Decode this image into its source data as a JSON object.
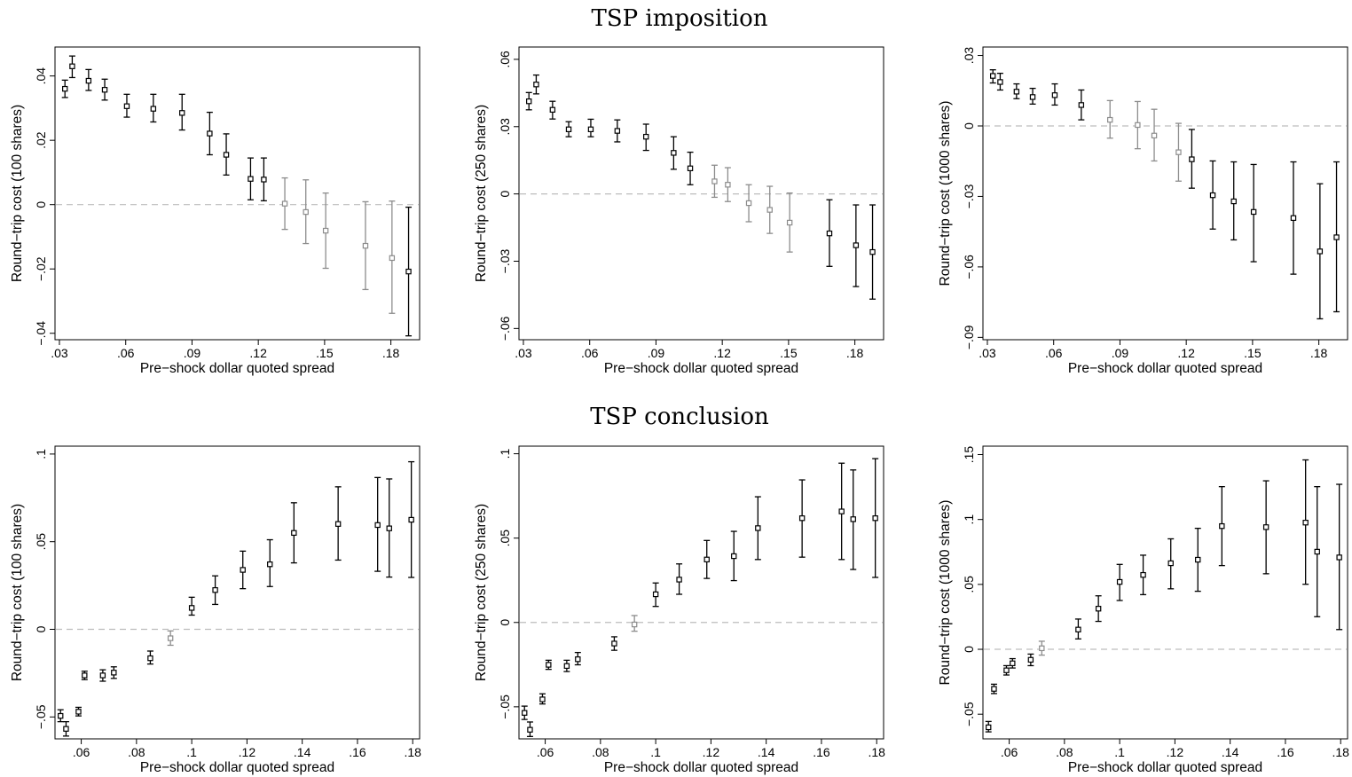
{
  "figure": {
    "row_titles": [
      "TSP imposition",
      "TSP conclusion"
    ]
  },
  "colors": {
    "significant": "#000000",
    "insignificant": "#8c8c8c",
    "zero_line": "#bdbdbd"
  },
  "chart_data": [
    {
      "type": "scatter",
      "panel": "TSP imposition",
      "xlabel": "Pre−shock dollar quoted spread",
      "ylabel": "Round−trip cost (100 shares)",
      "xlim": [
        0.028,
        0.193
      ],
      "ylim": [
        -0.042,
        0.049
      ],
      "xticks": [
        0.03,
        0.06,
        0.09,
        0.12,
        0.15,
        0.18
      ],
      "xtick_labels": [
        ".03",
        ".06",
        ".09",
        ".12",
        ".15",
        ".18"
      ],
      "yticks": [
        -0.04,
        -0.02,
        0,
        0.02,
        0.04
      ],
      "ytick_labels": [
        "−.04",
        "−.02",
        "0",
        ".02",
        ".04"
      ],
      "zero_line": true,
      "points": [
        {
          "x": 0.0325,
          "y": 0.036,
          "lo": 0.0333,
          "hi": 0.0387,
          "sig": true
        },
        {
          "x": 0.0358,
          "y": 0.043,
          "lo": 0.0395,
          "hi": 0.0462,
          "sig": true
        },
        {
          "x": 0.0432,
          "y": 0.0385,
          "lo": 0.0355,
          "hi": 0.042,
          "sig": true
        },
        {
          "x": 0.0505,
          "y": 0.0357,
          "lo": 0.0325,
          "hi": 0.039,
          "sig": true
        },
        {
          "x": 0.0605,
          "y": 0.0306,
          "lo": 0.0272,
          "hi": 0.0343,
          "sig": true
        },
        {
          "x": 0.0725,
          "y": 0.0298,
          "lo": 0.0257,
          "hi": 0.0343,
          "sig": true
        },
        {
          "x": 0.0855,
          "y": 0.0285,
          "lo": 0.0232,
          "hi": 0.0343,
          "sig": true
        },
        {
          "x": 0.098,
          "y": 0.0221,
          "lo": 0.0155,
          "hi": 0.0287,
          "sig": true
        },
        {
          "x": 0.1055,
          "y": 0.0155,
          "lo": 0.0092,
          "hi": 0.022,
          "sig": true
        },
        {
          "x": 0.1165,
          "y": 0.008,
          "lo": 0.0015,
          "hi": 0.0145,
          "sig": true
        },
        {
          "x": 0.1225,
          "y": 0.0078,
          "lo": 0.0012,
          "hi": 0.0145,
          "sig": true
        },
        {
          "x": 0.132,
          "y": 0.0003,
          "lo": -0.0077,
          "hi": 0.0083,
          "sig": false
        },
        {
          "x": 0.1415,
          "y": -0.0023,
          "lo": -0.0121,
          "hi": 0.0077,
          "sig": false
        },
        {
          "x": 0.1505,
          "y": -0.0081,
          "lo": -0.0198,
          "hi": 0.0036,
          "sig": false
        },
        {
          "x": 0.1685,
          "y": -0.0128,
          "lo": -0.0264,
          "hi": 0.0009,
          "sig": false
        },
        {
          "x": 0.1805,
          "y": -0.0166,
          "lo": -0.0338,
          "hi": 0.0011,
          "sig": false
        },
        {
          "x": 0.188,
          "y": -0.0208,
          "lo": -0.0408,
          "hi": -0.0008,
          "sig": true
        }
      ]
    },
    {
      "type": "scatter",
      "panel": "TSP imposition",
      "xlabel": "Pre−shock dollar quoted spread",
      "ylabel": "Round−trip cost (250 shares)",
      "xlim": [
        0.028,
        0.193
      ],
      "ylim": [
        -0.065,
        0.0655
      ],
      "xticks": [
        0.03,
        0.06,
        0.09,
        0.12,
        0.15,
        0.18
      ],
      "xtick_labels": [
        ".03",
        ".06",
        ".09",
        ".12",
        ".15",
        ".18"
      ],
      "yticks": [
        -0.06,
        -0.03,
        0,
        0.03,
        0.06
      ],
      "ytick_labels": [
        "−.06",
        "−.03",
        "0",
        ".03",
        ".06"
      ],
      "zero_line": true,
      "points": [
        {
          "x": 0.0325,
          "y": 0.0413,
          "lo": 0.0375,
          "hi": 0.0452,
          "sig": true
        },
        {
          "x": 0.0358,
          "y": 0.0488,
          "lo": 0.0446,
          "hi": 0.053,
          "sig": true
        },
        {
          "x": 0.0432,
          "y": 0.0375,
          "lo": 0.0334,
          "hi": 0.0413,
          "sig": true
        },
        {
          "x": 0.0505,
          "y": 0.0288,
          "lo": 0.0255,
          "hi": 0.0322,
          "sig": true
        },
        {
          "x": 0.0605,
          "y": 0.0288,
          "lo": 0.0255,
          "hi": 0.0333,
          "sig": true
        },
        {
          "x": 0.0725,
          "y": 0.0281,
          "lo": 0.0232,
          "hi": 0.033,
          "sig": true
        },
        {
          "x": 0.0855,
          "y": 0.0255,
          "lo": 0.0194,
          "hi": 0.0311,
          "sig": true
        },
        {
          "x": 0.098,
          "y": 0.0183,
          "lo": 0.011,
          "hi": 0.0255,
          "sig": true
        },
        {
          "x": 0.1055,
          "y": 0.0114,
          "lo": 0.0041,
          "hi": 0.0186,
          "sig": true
        },
        {
          "x": 0.1165,
          "y": 0.0056,
          "lo": -0.0015,
          "hi": 0.0128,
          "sig": false
        },
        {
          "x": 0.1225,
          "y": 0.0041,
          "lo": -0.0034,
          "hi": 0.0117,
          "sig": false
        },
        {
          "x": 0.132,
          "y": -0.0041,
          "lo": -0.0124,
          "hi": 0.0041,
          "sig": false
        },
        {
          "x": 0.1415,
          "y": -0.0071,
          "lo": -0.0176,
          "hi": 0.0034,
          "sig": false
        },
        {
          "x": 0.1505,
          "y": -0.0128,
          "lo": -0.0259,
          "hi": 0.0004,
          "sig": false
        },
        {
          "x": 0.1685,
          "y": -0.0176,
          "lo": -0.0323,
          "hi": -0.0026,
          "sig": true
        },
        {
          "x": 0.1805,
          "y": -0.0229,
          "lo": -0.0413,
          "hi": -0.0049,
          "sig": true
        },
        {
          "x": 0.188,
          "y": -0.0259,
          "lo": -0.0469,
          "hi": -0.0049,
          "sig": true
        }
      ]
    },
    {
      "type": "scatter",
      "panel": "TSP imposition",
      "xlabel": "Pre−shock dollar quoted spread",
      "ylabel": "Round−trip cost (1000 shares)",
      "xlim": [
        0.028,
        0.193
      ],
      "ylim": [
        -0.091,
        0.0336
      ],
      "xticks": [
        0.03,
        0.06,
        0.09,
        0.12,
        0.15,
        0.18
      ],
      "xtick_labels": [
        ".03",
        ".06",
        ".09",
        ".12",
        ".15",
        ".18"
      ],
      "yticks": [
        -0.09,
        -0.06,
        -0.03,
        0,
        0.03
      ],
      "ytick_labels": [
        "−.09",
        "−.06",
        "−.03",
        "0",
        ".03"
      ],
      "zero_line": true,
      "points": [
        {
          "x": 0.0325,
          "y": 0.0213,
          "lo": 0.0183,
          "hi": 0.0239,
          "sig": true
        },
        {
          "x": 0.0358,
          "y": 0.0187,
          "lo": 0.0153,
          "hi": 0.0224,
          "sig": true
        },
        {
          "x": 0.0432,
          "y": 0.0146,
          "lo": 0.0116,
          "hi": 0.0179,
          "sig": true
        },
        {
          "x": 0.0505,
          "y": 0.0123,
          "lo": 0.0093,
          "hi": 0.016,
          "sig": true
        },
        {
          "x": 0.0605,
          "y": 0.0131,
          "lo": 0.0089,
          "hi": 0.0179,
          "sig": true
        },
        {
          "x": 0.0725,
          "y": 0.0089,
          "lo": 0.0026,
          "hi": 0.0153,
          "sig": true
        },
        {
          "x": 0.0855,
          "y": 0.0026,
          "lo": -0.0052,
          "hi": 0.0108,
          "sig": false
        },
        {
          "x": 0.098,
          "y": 0.0004,
          "lo": -0.0097,
          "hi": 0.0104,
          "sig": false
        },
        {
          "x": 0.1055,
          "y": -0.0041,
          "lo": -0.0149,
          "hi": 0.0071,
          "sig": false
        },
        {
          "x": 0.1165,
          "y": -0.0112,
          "lo": -0.0235,
          "hi": 0.0011,
          "sig": false
        },
        {
          "x": 0.1225,
          "y": -0.0142,
          "lo": -0.0265,
          "hi": -0.0015,
          "sig": true
        },
        {
          "x": 0.132,
          "y": -0.0295,
          "lo": -0.0439,
          "hi": -0.0149,
          "sig": true
        },
        {
          "x": 0.1415,
          "y": -0.0321,
          "lo": -0.0485,
          "hi": -0.0153,
          "sig": true
        },
        {
          "x": 0.1505,
          "y": -0.0366,
          "lo": -0.0578,
          "hi": -0.0164,
          "sig": true
        },
        {
          "x": 0.1685,
          "y": -0.0392,
          "lo": -0.0631,
          "hi": -0.0153,
          "sig": true
        },
        {
          "x": 0.1805,
          "y": -0.0534,
          "lo": -0.0821,
          "hi": -0.0246,
          "sig": true
        },
        {
          "x": 0.188,
          "y": -0.0474,
          "lo": -0.0791,
          "hi": -0.0153,
          "sig": true
        }
      ]
    },
    {
      "type": "scatter",
      "panel": "TSP conclusion",
      "xlabel": "Pre−shock dollar quoted spread",
      "ylabel": "Round−trip cost (100 shares)",
      "xlim": [
        0.0505,
        0.1825
      ],
      "ylim": [
        -0.0625,
        0.1045
      ],
      "xticks": [
        0.06,
        0.08,
        0.1,
        0.12,
        0.14,
        0.16,
        0.18
      ],
      "xtick_labels": [
        ".06",
        ".08",
        ".1",
        ".12",
        ".14",
        ".16",
        ".18"
      ],
      "yticks": [
        -0.05,
        0,
        0.05,
        0.1
      ],
      "ytick_labels": [
        "−.05",
        "0",
        ".05",
        ".1"
      ],
      "zero_line": true,
      "points": [
        {
          "x": 0.0525,
          "y": -0.0494,
          "lo": -0.0527,
          "hi": -0.0459,
          "sig": true
        },
        {
          "x": 0.0545,
          "y": -0.0568,
          "lo": -0.0609,
          "hi": -0.0527,
          "sig": true
        },
        {
          "x": 0.059,
          "y": -0.047,
          "lo": -0.0494,
          "hi": -0.0445,
          "sig": true
        },
        {
          "x": 0.0612,
          "y": -0.0263,
          "lo": -0.0287,
          "hi": -0.0239,
          "sig": true
        },
        {
          "x": 0.0678,
          "y": -0.0263,
          "lo": -0.0296,
          "hi": -0.0231,
          "sig": true
        },
        {
          "x": 0.0718,
          "y": -0.0247,
          "lo": -0.028,
          "hi": -0.0214,
          "sig": true
        },
        {
          "x": 0.085,
          "y": -0.0165,
          "lo": -0.0198,
          "hi": -0.0124,
          "sig": true
        },
        {
          "x": 0.0923,
          "y": -0.0051,
          "lo": -0.0091,
          "hi": -0.0009,
          "sig": false
        },
        {
          "x": 0.1,
          "y": 0.0122,
          "lo": 0.0081,
          "hi": 0.0183,
          "sig": true
        },
        {
          "x": 0.1085,
          "y": 0.0224,
          "lo": 0.0142,
          "hi": 0.0305,
          "sig": true
        },
        {
          "x": 0.1185,
          "y": 0.0339,
          "lo": 0.0232,
          "hi": 0.0446,
          "sig": true
        },
        {
          "x": 0.1283,
          "y": 0.0371,
          "lo": 0.0244,
          "hi": 0.0511,
          "sig": true
        },
        {
          "x": 0.137,
          "y": 0.055,
          "lo": 0.0379,
          "hi": 0.0722,
          "sig": true
        },
        {
          "x": 0.153,
          "y": 0.0601,
          "lo": 0.0395,
          "hi": 0.0813,
          "sig": true
        },
        {
          "x": 0.1673,
          "y": 0.0595,
          "lo": 0.0331,
          "hi": 0.0866,
          "sig": true
        },
        {
          "x": 0.1715,
          "y": 0.0576,
          "lo": 0.0298,
          "hi": 0.0858,
          "sig": true
        },
        {
          "x": 0.1795,
          "y": 0.0625,
          "lo": 0.0296,
          "hi": 0.0956,
          "sig": true
        }
      ]
    },
    {
      "type": "scatter",
      "panel": "TSP conclusion",
      "xlabel": "Pre−shock dollar quoted spread",
      "ylabel": "Round−trip cost (250 shares)",
      "xlim": [
        0.0505,
        0.1825
      ],
      "ylim": [
        -0.069,
        0.1045
      ],
      "xticks": [
        0.06,
        0.08,
        0.1,
        0.12,
        0.14,
        0.16,
        0.18
      ],
      "xtick_labels": [
        ".06",
        ".08",
        ".1",
        ".12",
        ".14",
        ".16",
        ".18"
      ],
      "yticks": [
        -0.05,
        0,
        0.05,
        0.1
      ],
      "ytick_labels": [
        "−.05",
        "0",
        ".05",
        ".1"
      ],
      "zero_line": true,
      "points": [
        {
          "x": 0.0525,
          "y": -0.0536,
          "lo": -0.0575,
          "hi": -0.0496,
          "sig": true
        },
        {
          "x": 0.0545,
          "y": -0.0636,
          "lo": -0.0676,
          "hi": -0.059,
          "sig": true
        },
        {
          "x": 0.059,
          "y": -0.0456,
          "lo": -0.0483,
          "hi": -0.0423,
          "sig": true
        },
        {
          "x": 0.0612,
          "y": -0.0251,
          "lo": -0.0278,
          "hi": -0.0224,
          "sig": true
        },
        {
          "x": 0.0678,
          "y": -0.0258,
          "lo": -0.0291,
          "hi": -0.0224,
          "sig": true
        },
        {
          "x": 0.0718,
          "y": -0.0218,
          "lo": -0.0251,
          "hi": -0.0178,
          "sig": true
        },
        {
          "x": 0.085,
          "y": -0.0125,
          "lo": -0.0165,
          "hi": -0.0085,
          "sig": true
        },
        {
          "x": 0.0923,
          "y": -0.0012,
          "lo": -0.0052,
          "hi": 0.0041,
          "sig": false
        },
        {
          "x": 0.1,
          "y": 0.0167,
          "lo": 0.0095,
          "hi": 0.0234,
          "sig": true
        },
        {
          "x": 0.1085,
          "y": 0.0254,
          "lo": 0.0167,
          "hi": 0.0347,
          "sig": true
        },
        {
          "x": 0.1185,
          "y": 0.0373,
          "lo": 0.0261,
          "hi": 0.0486,
          "sig": true
        },
        {
          "x": 0.1283,
          "y": 0.0393,
          "lo": 0.0248,
          "hi": 0.054,
          "sig": true
        },
        {
          "x": 0.137,
          "y": 0.0559,
          "lo": 0.0373,
          "hi": 0.0745,
          "sig": true
        },
        {
          "x": 0.153,
          "y": 0.0618,
          "lo": 0.0387,
          "hi": 0.0845,
          "sig": true
        },
        {
          "x": 0.1673,
          "y": 0.0658,
          "lo": 0.0373,
          "hi": 0.0944,
          "sig": true
        },
        {
          "x": 0.1715,
          "y": 0.0612,
          "lo": 0.0314,
          "hi": 0.0904,
          "sig": true
        },
        {
          "x": 0.1795,
          "y": 0.0618,
          "lo": 0.0267,
          "hi": 0.0971,
          "sig": true
        }
      ]
    },
    {
      "type": "scatter",
      "panel": "TSP conclusion",
      "xlabel": "Pre−shock dollar quoted spread",
      "ylabel": "Round−trip cost (1000 shares)",
      "xlim": [
        0.0505,
        0.1825
      ],
      "ylim": [
        -0.069,
        0.1565
      ],
      "xticks": [
        0.06,
        0.08,
        0.1,
        0.12,
        0.14,
        0.16,
        0.18
      ],
      "xtick_labels": [
        ".06",
        ".08",
        ".1",
        ".12",
        ".14",
        ".16",
        ".18"
      ],
      "yticks": [
        -0.05,
        0,
        0.05,
        0.1,
        0.15
      ],
      "ytick_labels": [
        "−.05",
        "0",
        ".05",
        ".1",
        ".15"
      ],
      "zero_line": true,
      "points": [
        {
          "x": 0.0525,
          "y": -0.0601,
          "lo": -0.0636,
          "hi": -0.0556,
          "sig": true
        },
        {
          "x": 0.0545,
          "y": -0.0305,
          "lo": -0.0341,
          "hi": -0.0269,
          "sig": true
        },
        {
          "x": 0.059,
          "y": -0.0162,
          "lo": -0.0198,
          "hi": -0.0126,
          "sig": true
        },
        {
          "x": 0.0612,
          "y": -0.0108,
          "lo": -0.0144,
          "hi": -0.0072,
          "sig": true
        },
        {
          "x": 0.0678,
          "y": -0.0081,
          "lo": -0.0126,
          "hi": -0.0037,
          "sig": true
        },
        {
          "x": 0.0718,
          "y": 0.0008,
          "lo": -0.0045,
          "hi": 0.0062,
          "sig": false
        },
        {
          "x": 0.085,
          "y": 0.0152,
          "lo": 0.008,
          "hi": 0.0233,
          "sig": true
        },
        {
          "x": 0.0923,
          "y": 0.0313,
          "lo": 0.0215,
          "hi": 0.0412,
          "sig": true
        },
        {
          "x": 0.1,
          "y": 0.0519,
          "lo": 0.0376,
          "hi": 0.0654,
          "sig": true
        },
        {
          "x": 0.1085,
          "y": 0.0573,
          "lo": 0.0421,
          "hi": 0.0725,
          "sig": true
        },
        {
          "x": 0.1185,
          "y": 0.0663,
          "lo": 0.0466,
          "hi": 0.0851,
          "sig": true
        },
        {
          "x": 0.1283,
          "y": 0.069,
          "lo": 0.0447,
          "hi": 0.0932,
          "sig": true
        },
        {
          "x": 0.137,
          "y": 0.0949,
          "lo": 0.0645,
          "hi": 0.1253,
          "sig": true
        },
        {
          "x": 0.153,
          "y": 0.0941,
          "lo": 0.0582,
          "hi": 0.1298,
          "sig": true
        },
        {
          "x": 0.1673,
          "y": 0.0976,
          "lo": 0.0501,
          "hi": 0.1459,
          "sig": true
        },
        {
          "x": 0.1715,
          "y": 0.0752,
          "lo": 0.0251,
          "hi": 0.1253,
          "sig": true
        },
        {
          "x": 0.1795,
          "y": 0.0708,
          "lo": 0.0152,
          "hi": 0.1271,
          "sig": true
        }
      ]
    }
  ]
}
